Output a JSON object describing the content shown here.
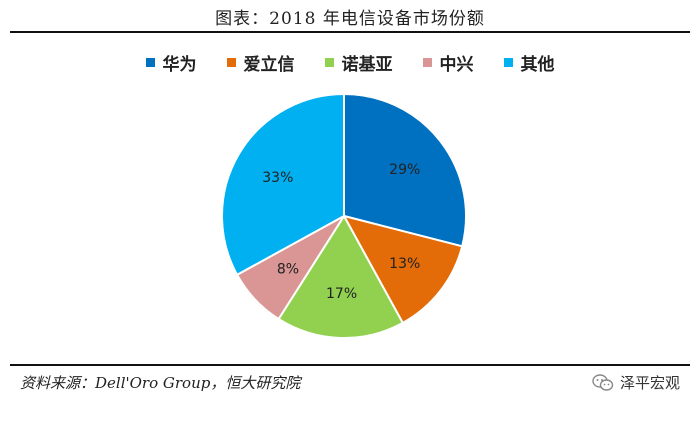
{
  "page_title": "图表：2018 年电信设备市场份额",
  "source": "资料来源：Dell'Oro Group，恒大研究院",
  "brand_name": "泽平宏观",
  "chart_data": {
    "type": "pie",
    "title": "图表：2018 年电信设备市场份额",
    "legend_position": "top",
    "slices": [
      {
        "name": "华为",
        "value": 29,
        "label": "29%",
        "color": "#0070C0"
      },
      {
        "name": "爱立信",
        "value": 13,
        "label": "13%",
        "color": "#E36C09"
      },
      {
        "name": "诺基亚",
        "value": 17,
        "label": "17%",
        "color": "#92D050"
      },
      {
        "name": "中兴",
        "value": 8,
        "label": "8%",
        "color": "#DA9694"
      },
      {
        "name": "其他",
        "value": 33,
        "label": "33%",
        "color": "#00B0F0"
      }
    ]
  }
}
